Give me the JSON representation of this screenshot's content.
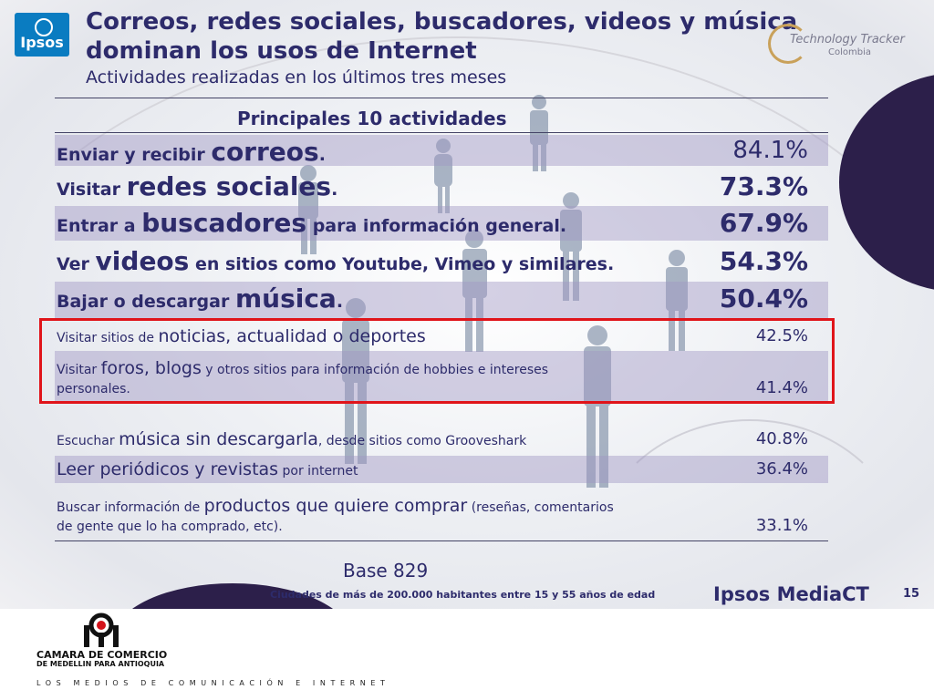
{
  "header": {
    "ipsos_logo": "Ipsos",
    "title_line1": "Correos, redes sociales, buscadores, videos y música",
    "title_line2": "dominan los usos de Internet",
    "subtitle": "Actividades realizadas en los últimos tres meses",
    "tracker_logo": "Technology Tracker",
    "tracker_sub": "Colombia"
  },
  "table": {
    "heading": "Principales 10 actividades",
    "rows": [
      {
        "pre": "Enviar y recibir ",
        "emph": "correos",
        "post": ".",
        "value": "84.1%"
      },
      {
        "pre": "Visitar ",
        "emph": "redes sociales",
        "post": ".",
        "value": "73.3%"
      },
      {
        "pre": "Entrar a ",
        "emph": "buscadores",
        "post": " para información general.",
        "value": "67.9%"
      },
      {
        "pre": "Ver ",
        "emph": "videos",
        "post": " en sitios como Youtube, Vimeo y similares.",
        "value": "54.3%"
      },
      {
        "pre": "Bajar o descargar ",
        "emph": "música",
        "post": ".",
        "value": "50.4%"
      },
      {
        "pre": "Visitar sitios de ",
        "emph": "noticias, actualidad o deportes",
        "post": "",
        "value": "42.5%"
      },
      {
        "pre": "Visitar ",
        "emph": "foros, blogs",
        "post": " y otros sitios para información de hobbies e intereses",
        "post2": "personales.",
        "value": "41.4%"
      },
      {
        "pre": "Escuchar ",
        "emph": "música sin descargarla",
        "post": ", desde sitios como Grooveshark",
        "value": "40.8%"
      },
      {
        "pre": "",
        "emph": "Leer periódicos y revistas",
        "post": " por internet",
        "value": "36.4%"
      },
      {
        "pre": "Buscar información de ",
        "emph": "productos que quiere comprar",
        "post": " (reseñas, comentarios",
        "post2": "de gente que lo ha comprado, etc).",
        "value": "33.1%"
      }
    ]
  },
  "footer": {
    "base": "Base 829",
    "note": "Ciudades de más de 200.000 habitantes entre 15 y 55 años de edad",
    "brand": "Ipsos MediaCT",
    "page": "15"
  },
  "bottom": {
    "org_name": "CAMARA DE COMERCIO",
    "org_sub": "DE MEDELLIN PARA ANTIOQUIA",
    "tagline": "LOS MEDIOS DE COMUNICACIÓN E INTERNET"
  },
  "colors": {
    "title": "#2d2b6b",
    "row_shade": "#a096c3",
    "highlight": "#e0141a",
    "accent_dark": "#2c1f4a",
    "ipsos_blue": "#0a7cc1"
  }
}
